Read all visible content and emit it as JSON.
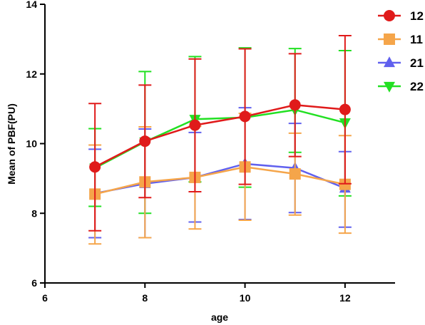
{
  "chart_data": {
    "type": "line",
    "title": "",
    "xlabel": "age",
    "ylabel": "Mean of PBF(PU)",
    "xlim": [
      6,
      13
    ],
    "ylim": [
      6,
      14
    ],
    "xticks": [
      6,
      8,
      10,
      12
    ],
    "yticks": [
      6,
      8,
      10,
      12,
      14
    ],
    "grid": false,
    "legend_position": "right",
    "series": [
      {
        "name": "22",
        "color": "#22e022",
        "marker": "triangle-down",
        "x": [
          7,
          8,
          9,
          10,
          11,
          12
        ],
        "y": [
          9.3,
          10.05,
          10.7,
          10.75,
          10.97,
          10.6
        ],
        "err_low": [
          8.2,
          8.0,
          8.9,
          8.75,
          9.75,
          8.5
        ],
        "err_high": [
          10.43,
          12.07,
          12.5,
          12.75,
          12.73,
          12.67
        ]
      },
      {
        "name": "21",
        "color": "#6060ee",
        "marker": "triangle-up",
        "x": [
          7,
          8,
          9,
          10,
          11,
          12
        ],
        "y": [
          8.57,
          8.85,
          9.03,
          9.42,
          9.3,
          8.72
        ],
        "err_low": [
          7.3,
          7.3,
          7.75,
          7.82,
          8.02,
          7.6
        ],
        "err_high": [
          9.84,
          10.42,
          10.32,
          11.03,
          10.58,
          9.77
        ]
      },
      {
        "name": "11",
        "color": "#f5a54a",
        "marker": "square",
        "x": [
          7,
          8,
          9,
          10,
          11,
          12
        ],
        "y": [
          8.55,
          8.9,
          9.03,
          9.33,
          9.13,
          8.83
        ],
        "err_low": [
          7.12,
          7.3,
          7.55,
          7.8,
          7.95,
          7.43
        ],
        "err_high": [
          9.96,
          10.48,
          10.5,
          10.87,
          10.3,
          10.23
        ]
      },
      {
        "name": "12",
        "color": "#e01a1a",
        "marker": "circle",
        "x": [
          7,
          8,
          9,
          10,
          11,
          12
        ],
        "y": [
          9.33,
          10.07,
          10.53,
          10.78,
          11.11,
          10.98
        ],
        "err_low": [
          7.5,
          8.45,
          8.62,
          8.83,
          9.63,
          8.85
        ],
        "err_high": [
          11.15,
          11.68,
          12.43,
          12.72,
          12.58,
          13.1
        ]
      }
    ],
    "legend": [
      "12",
      "11",
      "21",
      "22"
    ]
  }
}
